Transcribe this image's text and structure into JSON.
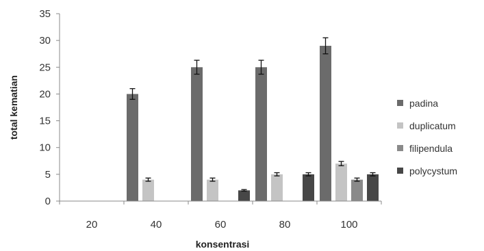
{
  "chart_data": {
    "type": "bar",
    "categories": [
      "20",
      "40",
      "60",
      "80",
      "100"
    ],
    "series": [
      {
        "name": "padina",
        "color": "#6b6b6b",
        "values": [
          0,
          20,
          25,
          25,
          29
        ],
        "errors": [
          0,
          1.0,
          1.3,
          1.3,
          1.5
        ]
      },
      {
        "name": "duplicatum",
        "color": "#c4c4c4",
        "values": [
          0,
          4,
          4,
          5,
          7
        ],
        "errors": [
          0,
          0.3,
          0.3,
          0.3,
          0.4
        ]
      },
      {
        "name": "filipendula",
        "color": "#8a8a8a",
        "values": [
          0,
          0,
          0,
          0,
          4
        ],
        "errors": [
          0,
          0,
          0,
          0,
          0.3
        ]
      },
      {
        "name": "polycystum",
        "color": "#474747",
        "values": [
          0,
          0,
          2,
          5,
          5
        ],
        "errors": [
          0,
          0,
          0.15,
          0.3,
          0.3
        ]
      }
    ],
    "xlabel": "konsentrasi",
    "ylabel": "total kematian",
    "ylim": [
      0,
      35
    ],
    "yticks": [
      0,
      5,
      10,
      15,
      20,
      25,
      30,
      35
    ],
    "grid": false,
    "legend_position": "right"
  }
}
